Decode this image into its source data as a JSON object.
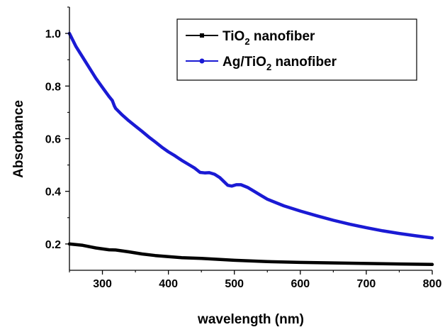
{
  "chart_data": {
    "type": "line",
    "title": "",
    "xlabel": "wavelength (nm)",
    "ylabel": "Absorbance",
    "xlim": [
      250,
      800
    ],
    "ylim": [
      0.1,
      1.1
    ],
    "x_ticks": [
      300,
      400,
      500,
      600,
      700,
      800
    ],
    "x_tick_labels": [
      "300",
      "400",
      "500",
      "600",
      "700",
      "800"
    ],
    "y_ticks": [
      0.2,
      0.4,
      0.6,
      0.8,
      1.0
    ],
    "y_tick_labels": [
      "0.2",
      "0.4",
      "0.6",
      "0.8",
      "1.0"
    ],
    "grid": false,
    "legend_position": "top-right",
    "series": [
      {
        "name": "TiO2 nanofiber",
        "label_main": "TiO",
        "label_sub": "2",
        "label_rest": " nanofiber",
        "color": "#000000",
        "x": [
          250,
          270,
          290,
          310,
          320,
          340,
          360,
          380,
          400,
          420,
          450,
          500,
          550,
          600,
          650,
          700,
          750,
          800
        ],
        "y": [
          0.2,
          0.195,
          0.185,
          0.178,
          0.177,
          0.17,
          0.162,
          0.156,
          0.152,
          0.148,
          0.145,
          0.138,
          0.133,
          0.13,
          0.128,
          0.126,
          0.124,
          0.122
        ]
      },
      {
        "name": "Ag/TiO2 nanofiber",
        "label_main": "Ag/TiO",
        "label_sub": "2",
        "label_rest": " nanofiber",
        "color": "#1a1ad4",
        "x": [
          250,
          260,
          270,
          280,
          290,
          300,
          310,
          315,
          318,
          320,
          330,
          340,
          350,
          360,
          370,
          380,
          390,
          400,
          410,
          420,
          430,
          440,
          448,
          455,
          462,
          470,
          478,
          485,
          490,
          496,
          503,
          510,
          520,
          530,
          540,
          550,
          575,
          600,
          625,
          650,
          675,
          700,
          725,
          750,
          775,
          800
        ],
        "y": [
          1.0,
          0.95,
          0.91,
          0.87,
          0.83,
          0.795,
          0.76,
          0.745,
          0.725,
          0.715,
          0.69,
          0.668,
          0.648,
          0.628,
          0.607,
          0.588,
          0.568,
          0.55,
          0.535,
          0.518,
          0.503,
          0.488,
          0.472,
          0.47,
          0.471,
          0.465,
          0.452,
          0.435,
          0.423,
          0.42,
          0.425,
          0.425,
          0.415,
          0.4,
          0.385,
          0.37,
          0.345,
          0.325,
          0.307,
          0.29,
          0.275,
          0.262,
          0.25,
          0.24,
          0.231,
          0.223
        ]
      }
    ]
  }
}
